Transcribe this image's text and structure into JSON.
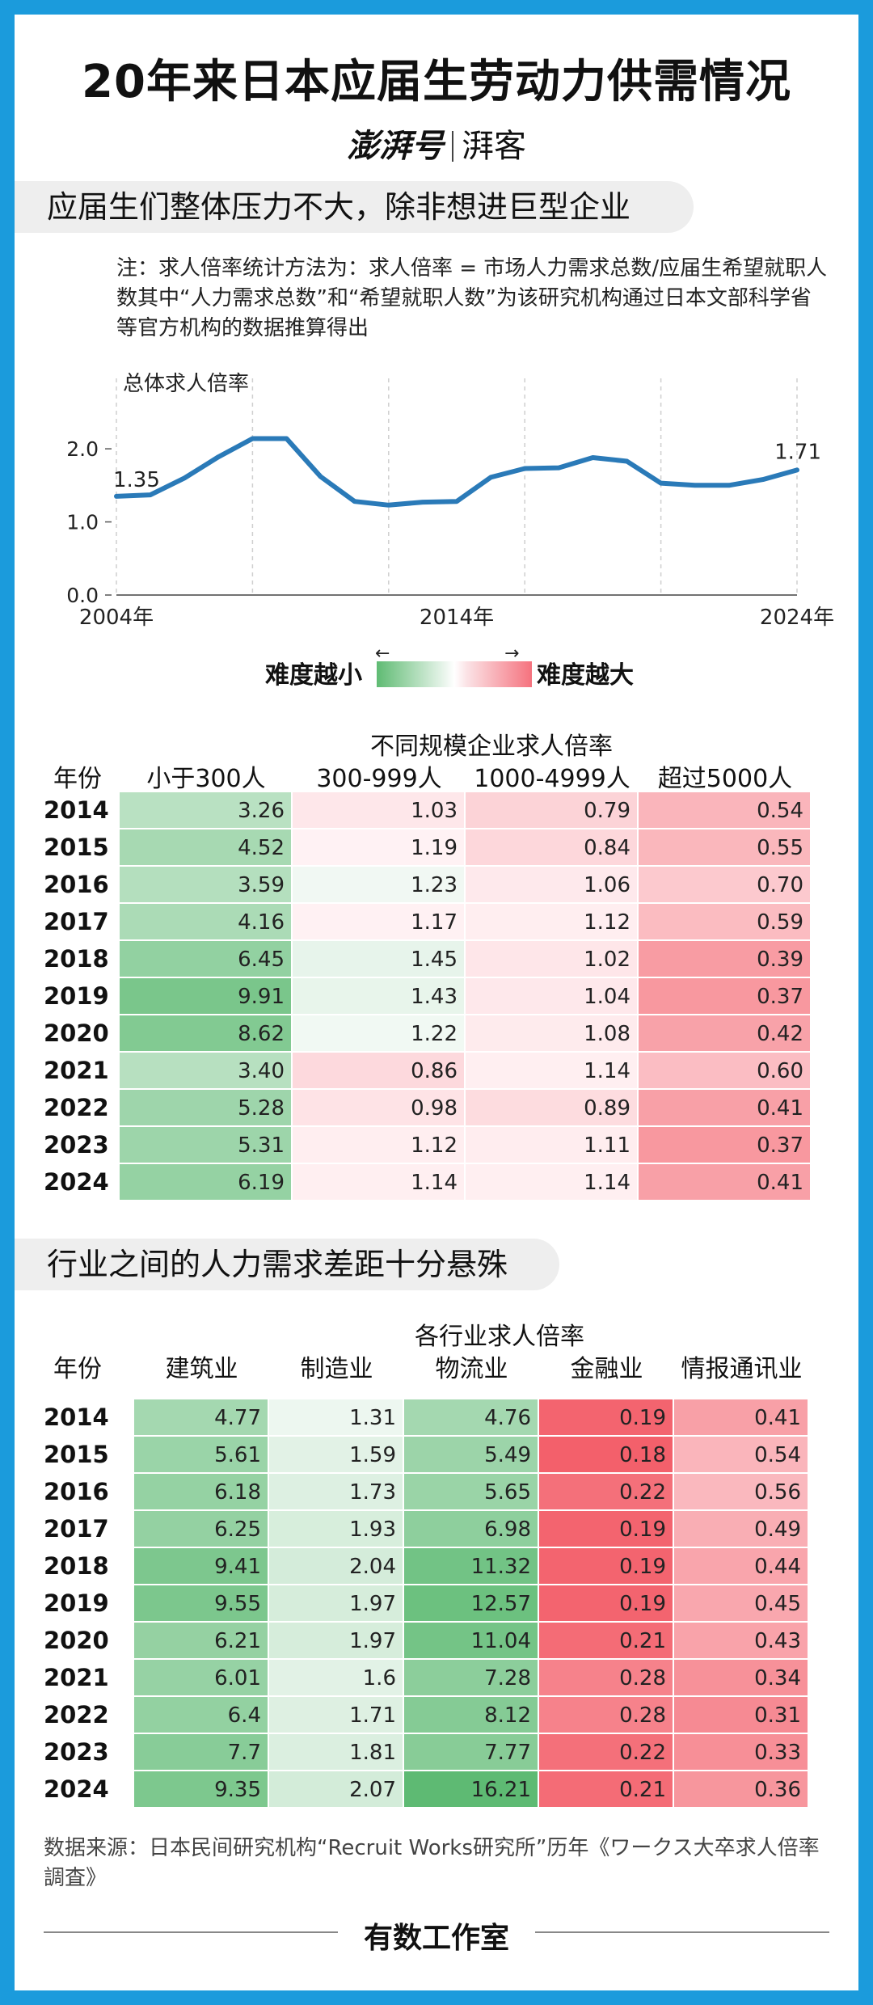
{
  "title": "20年来日本应届生劳动力供需情况",
  "brand": {
    "left": "澎湃号",
    "right": "湃客"
  },
  "section1": "应届生们整体压力不大，除非想进巨型企业",
  "note": "注：求人倍率统计方法为：求人倍率 = 市场人力需求总数/应届生希望就职人数其中“人力需求总数”和“希望就职人数”为该研究机构通过日本文部科学省等官方机构的数据推算得出",
  "legend": {
    "left": "难度越小",
    "right": "难度越大",
    "left_arrow": "←",
    "right_arrow": "→"
  },
  "chart_data": {
    "type": "line",
    "title": "总体求人倍率",
    "x": [
      2004,
      2005,
      2006,
      2007,
      2008,
      2009,
      2010,
      2011,
      2012,
      2013,
      2014,
      2015,
      2016,
      2017,
      2018,
      2019,
      2020,
      2021,
      2022,
      2023,
      2024
    ],
    "values": [
      1.35,
      1.37,
      1.6,
      1.89,
      2.14,
      2.14,
      1.62,
      1.28,
      1.23,
      1.27,
      1.28,
      1.61,
      1.73,
      1.74,
      1.88,
      1.83,
      1.53,
      1.5,
      1.5,
      1.58,
      1.71
    ],
    "ylim": [
      0,
      2.3
    ],
    "yticks": [
      "0.0",
      "1.0",
      "2.0"
    ],
    "xtick_labels": [
      "2004年",
      "2014年",
      "2024年"
    ],
    "start_label": "1.35",
    "end_label": "1.71",
    "line_color": "#2a7ab8"
  },
  "table1": {
    "super_header": "不同规模企业求人倍率",
    "year_header": "年份",
    "columns": [
      "小于300人",
      "300-999人",
      "1000-4999人",
      "超过5000人"
    ],
    "rows": [
      {
        "year": "2014",
        "values": [
          "3.26",
          "1.03",
          "0.79",
          "0.54"
        ]
      },
      {
        "year": "2015",
        "values": [
          "4.52",
          "1.19",
          "0.84",
          "0.55"
        ]
      },
      {
        "year": "2016",
        "values": [
          "3.59",
          "1.23",
          "1.06",
          "0.70"
        ]
      },
      {
        "year": "2017",
        "values": [
          "4.16",
          "1.17",
          "1.12",
          "0.59"
        ]
      },
      {
        "year": "2018",
        "values": [
          "6.45",
          "1.45",
          "1.02",
          "0.39"
        ]
      },
      {
        "year": "2019",
        "values": [
          "9.91",
          "1.43",
          "1.04",
          "0.37"
        ]
      },
      {
        "year": "2020",
        "values": [
          "8.62",
          "1.22",
          "1.08",
          "0.42"
        ]
      },
      {
        "year": "2021",
        "values": [
          "3.40",
          "0.86",
          "1.14",
          "0.60"
        ]
      },
      {
        "year": "2022",
        "values": [
          "5.28",
          "0.98",
          "0.89",
          "0.41"
        ]
      },
      {
        "year": "2023",
        "values": [
          "5.31",
          "1.12",
          "1.11",
          "0.37"
        ]
      },
      {
        "year": "2024",
        "values": [
          "6.19",
          "1.14",
          "1.14",
          "0.41"
        ]
      }
    ]
  },
  "section2": "行业之间的人力需求差距十分悬殊",
  "table2": {
    "super_header": "各行业求人倍率",
    "year_header": "年份",
    "columns": [
      "建筑业",
      "制造业",
      "物流业",
      "金融业",
      "情报通讯业"
    ],
    "rows": [
      {
        "year": "2014",
        "values": [
          "4.77",
          "1.31",
          "4.76",
          "0.19",
          "0.41"
        ]
      },
      {
        "year": "2015",
        "values": [
          "5.61",
          "1.59",
          "5.49",
          "0.18",
          "0.54"
        ]
      },
      {
        "year": "2016",
        "values": [
          "6.18",
          "1.73",
          "5.65",
          "0.22",
          "0.56"
        ]
      },
      {
        "year": "2017",
        "values": [
          "6.25",
          "1.93",
          "6.98",
          "0.19",
          "0.49"
        ]
      },
      {
        "year": "2018",
        "values": [
          "9.41",
          "2.04",
          "11.32",
          "0.19",
          "0.44"
        ]
      },
      {
        "year": "2019",
        "values": [
          "9.55",
          "1.97",
          "12.57",
          "0.19",
          "0.45"
        ]
      },
      {
        "year": "2020",
        "values": [
          "6.21",
          "1.97",
          "11.04",
          "0.21",
          "0.43"
        ]
      },
      {
        "year": "2021",
        "values": [
          "6.01",
          "1.6",
          "7.28",
          "0.28",
          "0.34"
        ]
      },
      {
        "year": "2022",
        "values": [
          "6.4",
          "1.71",
          "8.12",
          "0.28",
          "0.31"
        ]
      },
      {
        "year": "2023",
        "values": [
          "7.7",
          "1.81",
          "7.77",
          "0.22",
          "0.33"
        ]
      },
      {
        "year": "2024",
        "values": [
          "9.35",
          "2.07",
          "16.21",
          "0.21",
          "0.36"
        ]
      }
    ]
  },
  "source": "数据来源：日本民间研究机构“Recruit Works研究所”历年《ワークス大卒求人倍率調査》",
  "footer": "有数工作室"
}
